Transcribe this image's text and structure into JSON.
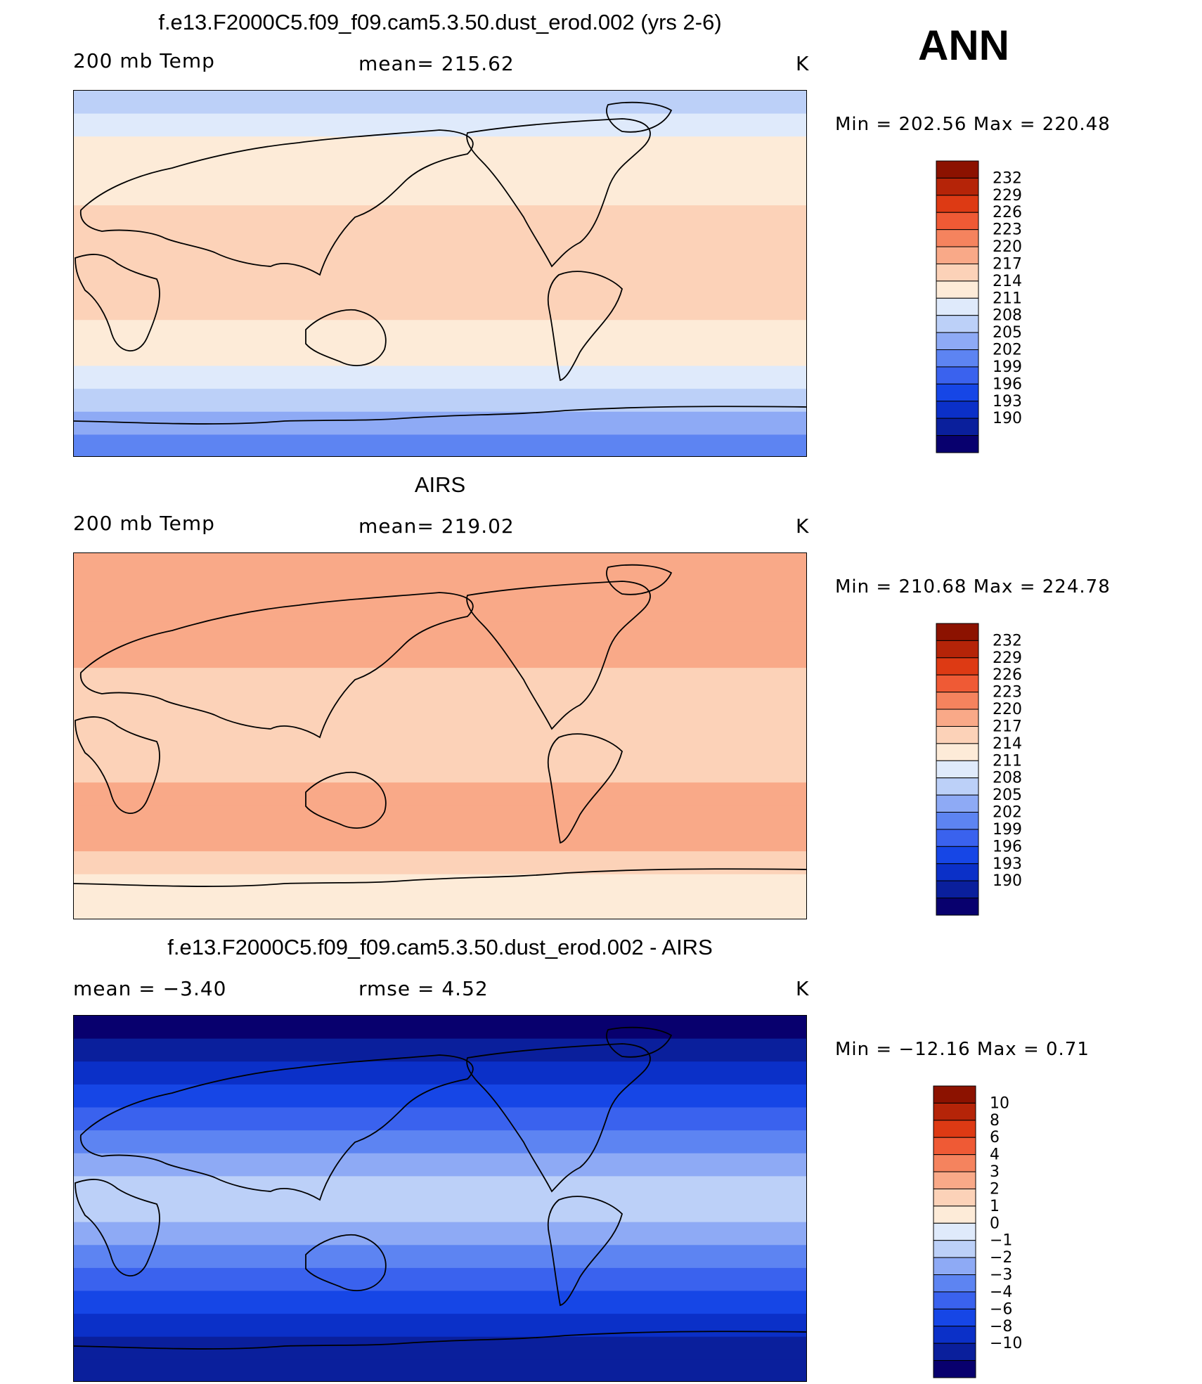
{
  "season": "ANN",
  "panels": [
    {
      "title": "f.e13.F2000C5.f09_f09.cam5.3.50.dust_erod.002 (yrs 2-6)",
      "left_label": "200 mb Temp",
      "center_label": "mean=  215.62",
      "units": "K",
      "minmax": "Min  =  202.56  Max  =  220.48"
    },
    {
      "title": "AIRS",
      "left_label": "200 mb Temp",
      "center_label": "mean=  219.02",
      "units": "K",
      "minmax": "Min  =  210.68  Max  =  224.78"
    },
    {
      "title": "f.e13.F2000C5.f09_f09.cam5.3.50.dust_erod.002 - AIRS",
      "left_label": "mean  =    −3.40",
      "center_label": "rmse  =     4.52",
      "units": "K",
      "minmax": "Min  =  −12.16  Max  =     0.71"
    }
  ],
  "chart_data": [
    {
      "type": "heatmap",
      "variable": "200 mb Temp",
      "units": "K",
      "mean": 215.62,
      "min": 202.56,
      "max": 220.48,
      "contour_levels": [
        190,
        193,
        196,
        199,
        202,
        205,
        208,
        211,
        214,
        217,
        220,
        223,
        226,
        229,
        232
      ],
      "colorbar_colors": [
        "#08006e",
        "#0a1f9c",
        "#0b30c8",
        "#1646e6",
        "#3a62ee",
        "#5d84f2",
        "#8eaaf5",
        "#bcd0f8",
        "#dfeafb",
        "#fdebd8",
        "#fcd2b8",
        "#f9a988",
        "#f5835e",
        "#ef5a35",
        "#dd3a14",
        "#b52408",
        "#8c1200"
      ],
      "zonal_band_values_north_to_south": [
        210,
        212,
        214,
        216,
        216,
        217.5,
        218,
        218,
        218,
        217,
        216,
        214,
        212,
        209,
        206,
        204
      ]
    },
    {
      "type": "heatmap",
      "variable": "200 mb Temp",
      "units": "K",
      "mean": 219.02,
      "min": 210.68,
      "max": 224.78,
      "contour_levels": [
        190,
        193,
        196,
        199,
        202,
        205,
        208,
        211,
        214,
        217,
        220,
        223,
        226,
        229,
        232
      ],
      "colorbar_colors": [
        "#08006e",
        "#0a1f9c",
        "#0b30c8",
        "#1646e6",
        "#3a62ee",
        "#5d84f2",
        "#8eaaf5",
        "#bcd0f8",
        "#dfeafb",
        "#fdebd8",
        "#fcd2b8",
        "#f9a988",
        "#f5835e",
        "#ef5a35",
        "#dd3a14",
        "#b52408",
        "#8c1200"
      ],
      "zonal_band_values_north_to_south": [
        221,
        222,
        221,
        220,
        220,
        219,
        219,
        218,
        218,
        219,
        220,
        221,
        220,
        218,
        216,
        214
      ]
    },
    {
      "type": "heatmap",
      "variable": "difference",
      "units": "K",
      "mean": -3.4,
      "rmse": 4.52,
      "min": -12.16,
      "max": 0.71,
      "contour_levels": [
        -10,
        -8,
        -6,
        -4,
        -3,
        -2,
        -1,
        0,
        1,
        2,
        3,
        4,
        6,
        8,
        10
      ],
      "colorbar_colors": [
        "#08006e",
        "#0a1f9c",
        "#0b30c8",
        "#1646e6",
        "#3a62ee",
        "#5d84f2",
        "#8eaaf5",
        "#bcd0f8",
        "#dfeafb",
        "#fdebd8",
        "#fcd2b8",
        "#f9a988",
        "#f5835e",
        "#ef5a35",
        "#dd3a14",
        "#b52408",
        "#8c1200"
      ],
      "zonal_band_values_north_to_south": [
        -11,
        -9,
        -7,
        -5,
        -4,
        -3,
        -2,
        -1,
        -1,
        -2,
        -3,
        -4,
        -6,
        -8,
        -9,
        -10
      ]
    }
  ]
}
